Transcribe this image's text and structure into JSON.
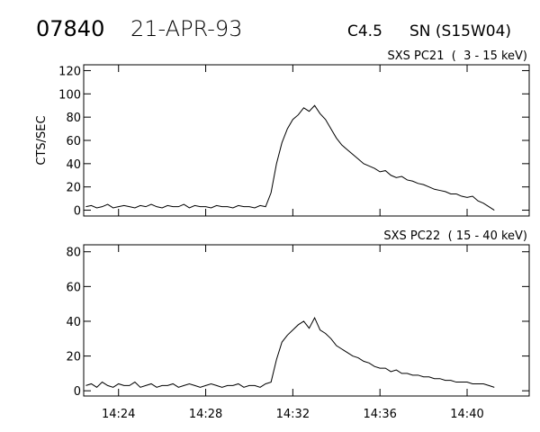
{
  "header": {
    "id": "07840",
    "date": "21-APR-93",
    "class": "C4.5",
    "location": "SN (S15W04)"
  },
  "chart_data": [
    {
      "type": "line",
      "title": "SXS PC21  (  3 - 15 keV)",
      "y_label": "CTS/SEC",
      "xlim": [
        862.4,
        882.85
      ],
      "ylim": [
        -5,
        125
      ],
      "yticks": [
        0,
        20,
        40,
        60,
        80,
        100,
        120
      ],
      "series": [
        {
          "color": "#000000",
          "x": [
            862.5,
            862.75,
            863,
            863.25,
            863.5,
            863.75,
            864,
            864.25,
            864.5,
            864.75,
            865,
            865.25,
            865.5,
            865.75,
            866,
            866.25,
            866.5,
            866.75,
            867,
            867.25,
            867.5,
            867.75,
            868,
            868.25,
            868.5,
            868.75,
            869,
            869.25,
            869.5,
            869.75,
            870,
            870.25,
            870.5,
            870.75,
            871,
            871.25,
            871.5,
            871.75,
            872,
            872.25,
            872.5,
            872.75,
            873,
            873.25,
            873.5,
            873.75,
            874,
            874.25,
            874.5,
            874.75,
            875,
            875.25,
            875.5,
            875.75,
            876,
            876.25,
            876.5,
            876.75,
            877,
            877.25,
            877.5,
            877.75,
            878,
            878.25,
            878.5,
            878.75,
            879,
            879.25,
            879.5,
            879.75,
            880,
            880.25,
            880.5,
            880.75,
            881,
            881.25
          ],
          "values": [
            3,
            4,
            2,
            3,
            5,
            2,
            3,
            4,
            3,
            2,
            4,
            3,
            5,
            3,
            2,
            4,
            3,
            3,
            5,
            2,
            4,
            3,
            3,
            2,
            4,
            3,
            3,
            2,
            4,
            3,
            3,
            2,
            4,
            3,
            15,
            40,
            58,
            70,
            78,
            82,
            88,
            85,
            90,
            83,
            78,
            70,
            62,
            56,
            52,
            48,
            44,
            40,
            38,
            36,
            33,
            34,
            30,
            28,
            29,
            26,
            25,
            23,
            22,
            20,
            18,
            17,
            16,
            14,
            14,
            12,
            11,
            12,
            8,
            6,
            3,
            0
          ]
        }
      ]
    },
    {
      "type": "line",
      "title": "SXS PC22  ( 15 - 40 keV)",
      "xlim": [
        862.4,
        882.85
      ],
      "ylim": [
        -3,
        84
      ],
      "yticks": [
        0,
        20,
        40,
        60,
        80
      ],
      "xticks": [
        {
          "value": 864,
          "label": "14:24"
        },
        {
          "value": 868,
          "label": "14:28"
        },
        {
          "value": 872,
          "label": "14:32"
        },
        {
          "value": 876,
          "label": "14:36"
        },
        {
          "value": 880,
          "label": "14:40"
        }
      ],
      "series": [
        {
          "color": "#000000",
          "x": [
            862.5,
            862.75,
            863,
            863.25,
            863.5,
            863.75,
            864,
            864.25,
            864.5,
            864.75,
            865,
            865.25,
            865.5,
            865.75,
            866,
            866.25,
            866.5,
            866.75,
            867,
            867.25,
            867.5,
            867.75,
            868,
            868.25,
            868.5,
            868.75,
            869,
            869.25,
            869.5,
            869.75,
            870,
            870.25,
            870.5,
            870.75,
            871,
            871.25,
            871.5,
            871.75,
            872,
            872.25,
            872.5,
            872.75,
            873,
            873.25,
            873.5,
            873.75,
            874,
            874.25,
            874.5,
            874.75,
            875,
            875.25,
            875.5,
            875.75,
            876,
            876.25,
            876.5,
            876.75,
            877,
            877.25,
            877.5,
            877.75,
            878,
            878.25,
            878.5,
            878.75,
            879,
            879.25,
            879.5,
            879.75,
            880,
            880.25,
            880.5,
            880.75,
            881,
            881.25
          ],
          "values": [
            3,
            4,
            2,
            5,
            3,
            2,
            4,
            3,
            3,
            5,
            2,
            3,
            4,
            2,
            3,
            3,
            4,
            2,
            3,
            4,
            3,
            2,
            3,
            4,
            3,
            2,
            3,
            3,
            4,
            2,
            3,
            3,
            2,
            4,
            5,
            18,
            28,
            32,
            35,
            38,
            40,
            36,
            42,
            35,
            33,
            30,
            26,
            24,
            22,
            20,
            19,
            17,
            16,
            14,
            13,
            13,
            11,
            12,
            10,
            10,
            9,
            9,
            8,
            8,
            7,
            7,
            6,
            6,
            5,
            5,
            5,
            4,
            4,
            4,
            3,
            2
          ]
        }
      ]
    }
  ]
}
